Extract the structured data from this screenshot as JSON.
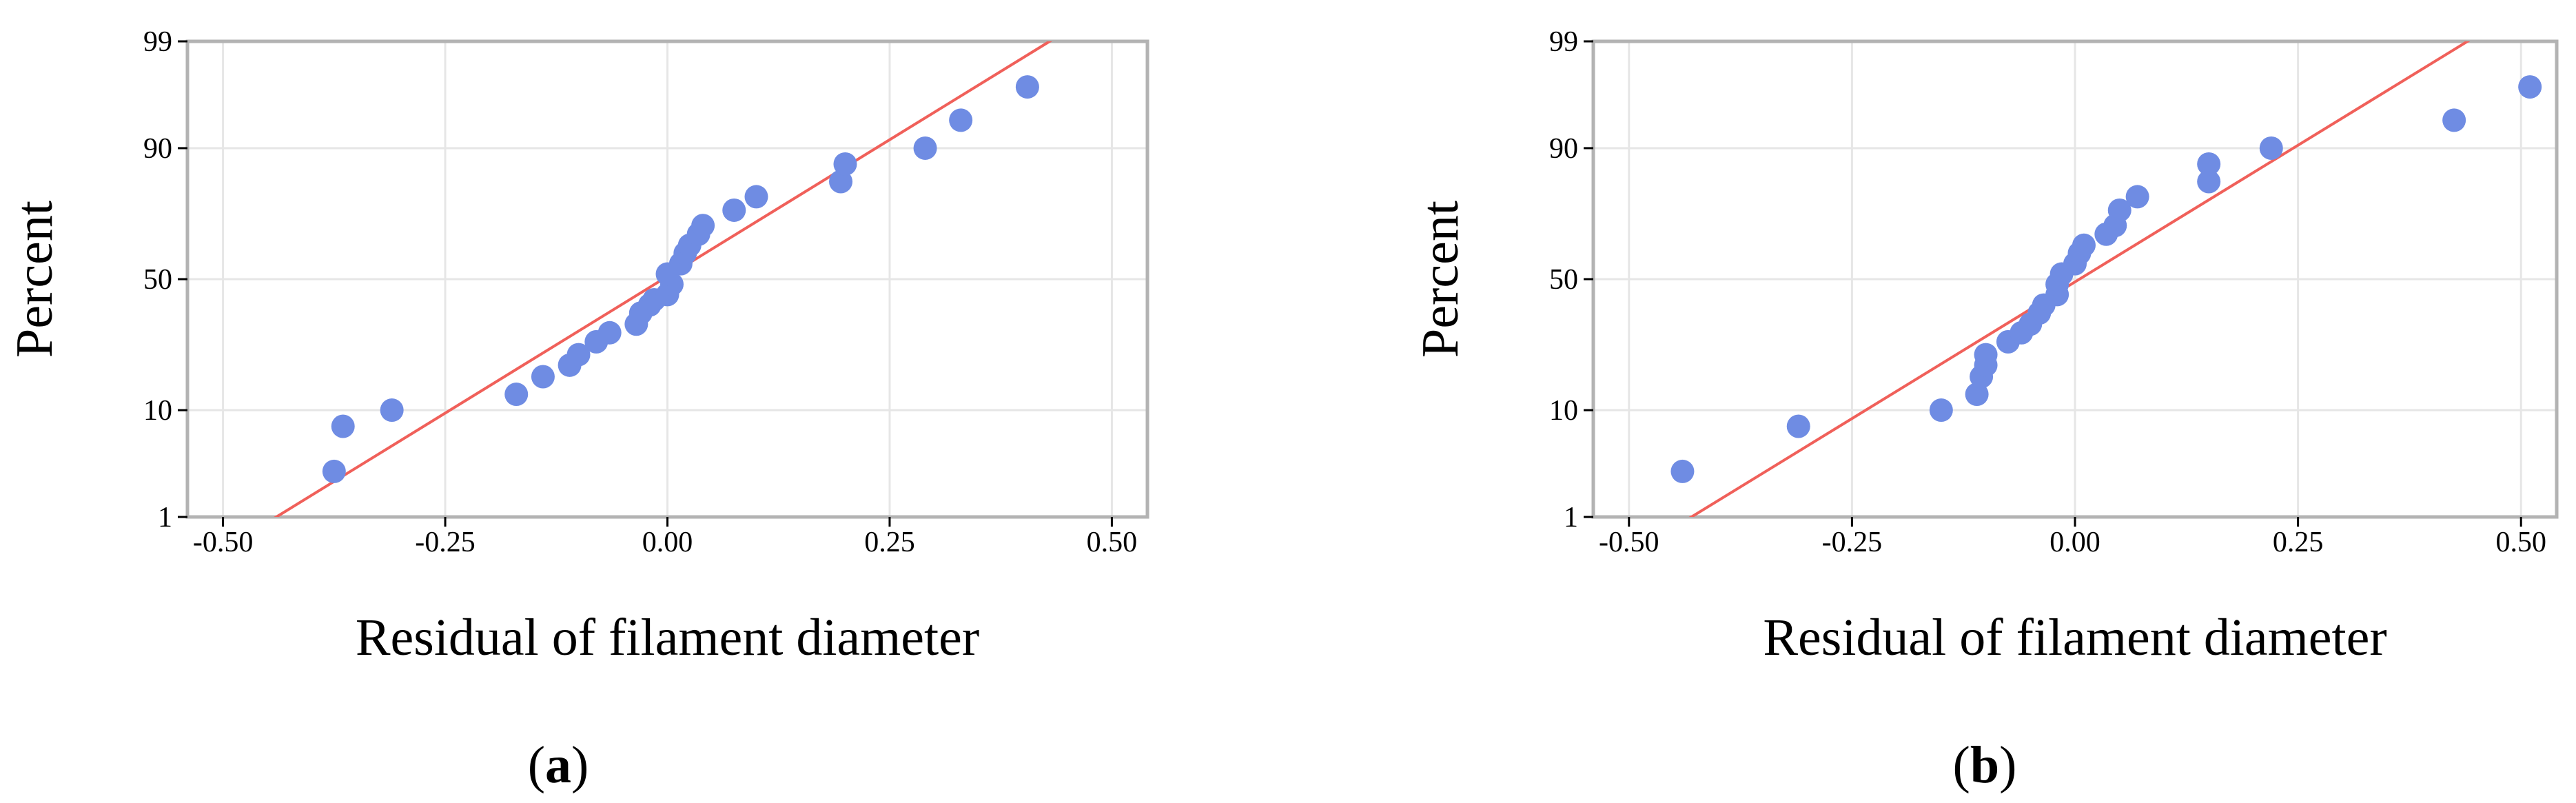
{
  "chart_data": [
    {
      "type": "scatter",
      "panel_label": "a",
      "xlabel": "Residual of filament diameter",
      "ylabel": "Percent",
      "x_ticks": [
        "-0.50",
        "-0.25",
        "0.00",
        "0.25",
        "0.50"
      ],
      "y_ticks": [
        "1",
        "10",
        "50",
        "90",
        "99"
      ],
      "xlim": [
        -0.5,
        0.5
      ],
      "y_scale": "normal-probability",
      "ylim": [
        1,
        99
      ],
      "grid": true,
      "point_color": "#6F8CE3",
      "line_color": "#F0605A",
      "fit_line": [
        [
          -0.44,
          1
        ],
        [
          0.43,
          99
        ]
      ],
      "points": [
        [
          -0.375,
          3
        ],
        [
          -0.365,
          7.5
        ],
        [
          -0.31,
          10
        ],
        [
          -0.17,
          13
        ],
        [
          -0.14,
          17
        ],
        [
          -0.11,
          20
        ],
        [
          -0.1,
          23
        ],
        [
          -0.08,
          27
        ],
        [
          -0.065,
          30
        ],
        [
          -0.035,
          33
        ],
        [
          -0.03,
          37
        ],
        [
          -0.02,
          40
        ],
        [
          -0.015,
          42
        ],
        [
          0.0,
          44
        ],
        [
          0.005,
          48
        ],
        [
          0.0,
          52
        ],
        [
          0.015,
          56
        ],
        [
          0.02,
          60
        ],
        [
          0.025,
          63
        ],
        [
          0.035,
          67
        ],
        [
          0.04,
          70
        ],
        [
          0.075,
          75
        ],
        [
          0.1,
          79
        ],
        [
          0.195,
          83
        ],
        [
          0.2,
          87
        ],
        [
          0.29,
          90
        ],
        [
          0.33,
          94
        ],
        [
          0.405,
          97
        ]
      ]
    },
    {
      "type": "scatter",
      "panel_label": "b",
      "xlabel": "Residual of filament diameter",
      "ylabel": "Percent",
      "x_ticks": [
        "-0.50",
        "-0.25",
        "0.00",
        "0.25",
        "0.50"
      ],
      "y_ticks": [
        "1",
        "10",
        "50",
        "90",
        "99"
      ],
      "xlim": [
        -0.5,
        0.5
      ],
      "y_scale": "normal-probability",
      "ylim": [
        1,
        99
      ],
      "grid": true,
      "point_color": "#6F8CE3",
      "line_color": "#F0605A",
      "fit_line": [
        [
          -0.43,
          1
        ],
        [
          0.44,
          99
        ]
      ],
      "points": [
        [
          -0.44,
          3
        ],
        [
          -0.31,
          7.5
        ],
        [
          -0.15,
          10
        ],
        [
          -0.11,
          13
        ],
        [
          -0.105,
          17
        ],
        [
          -0.1,
          20
        ],
        [
          -0.1,
          23
        ],
        [
          -0.075,
          27
        ],
        [
          -0.06,
          30
        ],
        [
          -0.05,
          33
        ],
        [
          -0.04,
          37
        ],
        [
          -0.035,
          40
        ],
        [
          -0.02,
          44
        ],
        [
          -0.02,
          48
        ],
        [
          -0.015,
          52
        ],
        [
          0.0,
          56
        ],
        [
          0.005,
          60
        ],
        [
          0.01,
          63
        ],
        [
          0.035,
          67
        ],
        [
          0.045,
          70
        ],
        [
          0.05,
          75
        ],
        [
          0.07,
          79
        ],
        [
          0.15,
          83
        ],
        [
          0.15,
          87
        ],
        [
          0.22,
          90
        ],
        [
          0.425,
          94
        ],
        [
          0.51,
          97
        ]
      ]
    }
  ]
}
